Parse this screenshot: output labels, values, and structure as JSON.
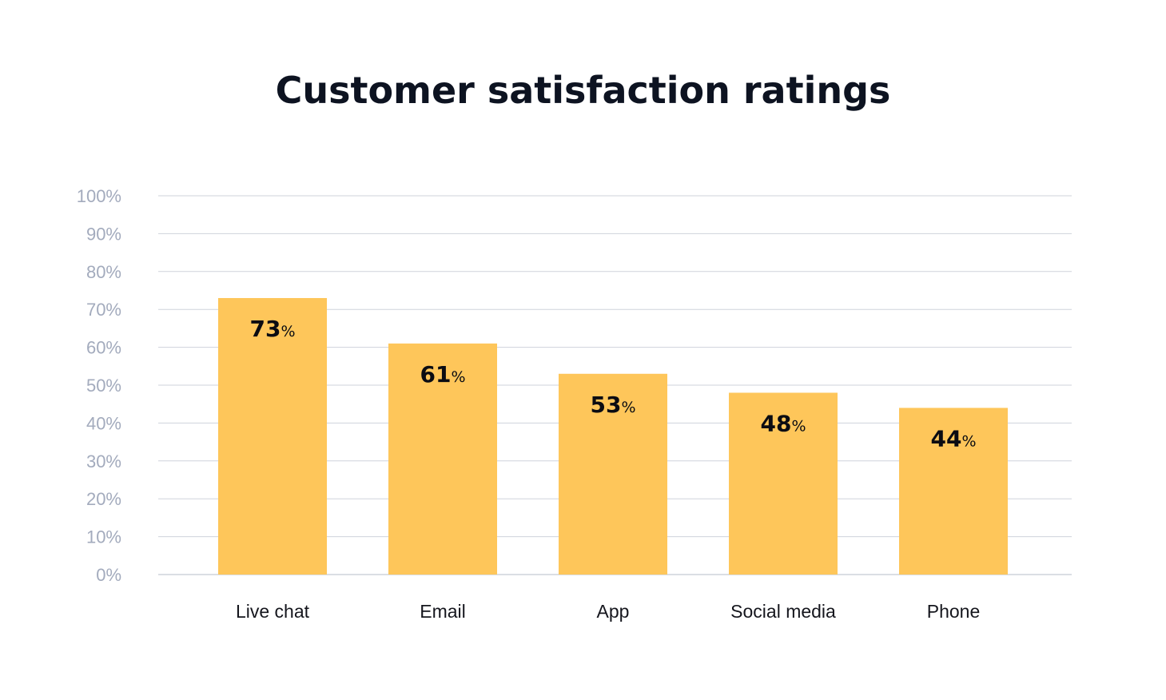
{
  "chart_data": {
    "type": "bar",
    "title": "Customer satisfaction ratings",
    "categories": [
      "Live chat",
      "Email",
      "App",
      "Social media",
      "Phone"
    ],
    "values": [
      73,
      61,
      53,
      48,
      44
    ],
    "value_suffix": "%",
    "ylim": [
      0,
      100
    ],
    "yticks": [
      "0%",
      "10%",
      "20%",
      "30%",
      "40%",
      "50%",
      "60%",
      "70%",
      "80%",
      "90%",
      "100%"
    ],
    "grid": true,
    "legend": "none",
    "colors": {
      "bar": "#fec65a",
      "grid": "#cfd3db",
      "tick_text": "#a3abbd",
      "title": "#0d1321"
    }
  }
}
